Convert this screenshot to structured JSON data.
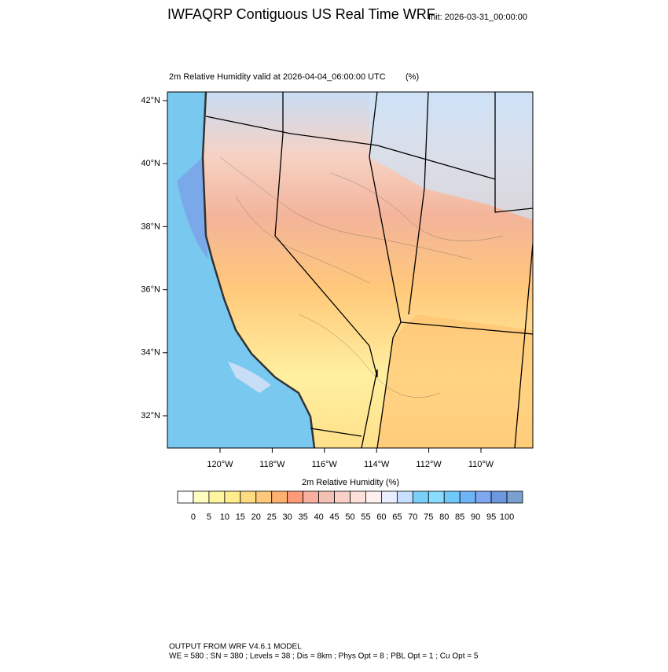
{
  "header": {
    "title": "IWFAQRP Contiguous US Real Time WRF",
    "init": "Init: 2026-03-31_00:00:00"
  },
  "plot": {
    "subtitle": "2m Relative Humidity valid at 2026-04-04_06:00:00 UTC",
    "units": "(%)",
    "lat_labels": [
      "42°N",
      "40°N",
      "38°N",
      "36°N",
      "34°N",
      "32°N"
    ],
    "lon_labels": [
      "120°W",
      "118°W",
      "116°W",
      "114°W",
      "112°W",
      "110°W"
    ]
  },
  "colorbar": {
    "title": "2m Relative Humidity  (%)",
    "labels": [
      0,
      5,
      10,
      15,
      20,
      25,
      30,
      35,
      40,
      45,
      50,
      55,
      60,
      65,
      70,
      75,
      80,
      85,
      90,
      95,
      100
    ],
    "colors": [
      "#ffffff",
      "#fffcc0",
      "#fff5a0",
      "#ffec8c",
      "#ffdc80",
      "#ffc87a",
      "#ffb070",
      "#ff9a78",
      "#f7b0a0",
      "#f3c0b4",
      "#f8d0c8",
      "#fde0d8",
      "#fff0f0",
      "#e8eeff",
      "#c8e0ff",
      "#78d0f8",
      "#88dcff",
      "#70c8f8",
      "#70b4f8",
      "#80a8f0",
      "#6c98e0",
      "#7aa0d0"
    ]
  },
  "footer": {
    "line1": "OUTPUT FROM WRF V4.6.1 MODEL",
    "line2": "WE = 580 ; SN = 380 ; Levels = 38 ; Dis = 8km ; Phys Opt = 8 ; PBL Opt = 1 ; Cu Opt = 5"
  }
}
